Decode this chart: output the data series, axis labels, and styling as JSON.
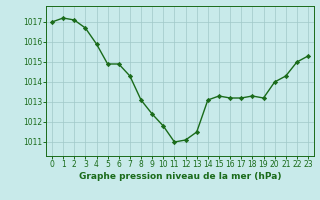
{
  "x": [
    0,
    1,
    2,
    3,
    4,
    5,
    6,
    7,
    8,
    9,
    10,
    11,
    12,
    13,
    14,
    15,
    16,
    17,
    18,
    19,
    20,
    21,
    22,
    23
  ],
  "y": [
    1017.0,
    1017.2,
    1017.1,
    1016.7,
    1015.9,
    1014.9,
    1014.9,
    1014.3,
    1013.1,
    1012.4,
    1011.8,
    1011.0,
    1011.1,
    1011.5,
    1013.1,
    1013.3,
    1013.2,
    1013.2,
    1013.3,
    1013.2,
    1014.0,
    1014.3,
    1015.0,
    1015.3
  ],
  "line_color": "#1a6b1a",
  "marker": "D",
  "marker_size": 2.2,
  "linewidth": 1.0,
  "bg_color": "#c8eaea",
  "grid_color": "#a0c8c8",
  "xlabel": "Graphe pression niveau de la mer (hPa)",
  "xlabel_fontsize": 6.5,
  "ylabel_ticks": [
    1011,
    1012,
    1013,
    1014,
    1015,
    1016,
    1017
  ],
  "ylim": [
    1010.3,
    1017.8
  ],
  "xlim": [
    -0.5,
    23.5
  ],
  "tick_fontsize": 5.5,
  "tick_color": "#1a6b1a",
  "spine_color": "#1a6b1a"
}
